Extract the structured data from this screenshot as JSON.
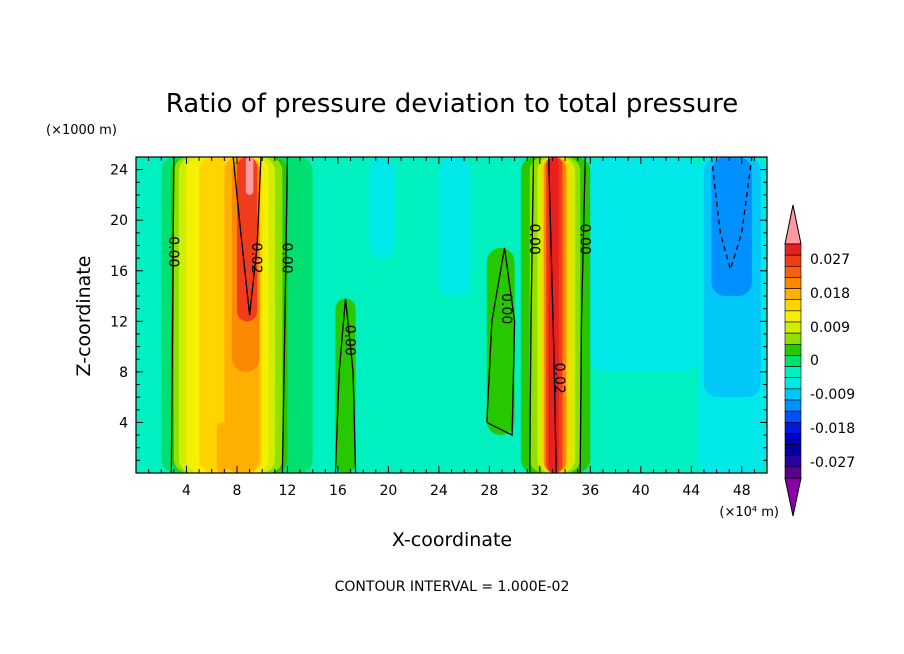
{
  "chart_data": {
    "type": "heatmap",
    "title": "Ratio of pressure deviation to total pressure",
    "xlabel": "X-coordinate",
    "ylabel": "Z-coordinate",
    "x_unit": "(×10⁴ m)",
    "y_unit": "(×1000 m)",
    "xlim": [
      0,
      50
    ],
    "ylim": [
      0,
      25
    ],
    "x_ticks": [
      "4",
      "8",
      "12",
      "16",
      "20",
      "24",
      "28",
      "32",
      "36",
      "40",
      "44",
      "48"
    ],
    "y_ticks": [
      "4",
      "8",
      "12",
      "16",
      "20",
      "24"
    ],
    "colorbar": {
      "labels": [
        "0.027",
        "0.018",
        "0.009",
        "0",
        "-0.009",
        "-0.018",
        "-0.027"
      ],
      "colors": [
        "#ff9aa0",
        "#e8211e",
        "#f03c1a",
        "#f56010",
        "#fb8a00",
        "#ffb000",
        "#ffd400",
        "#f5f000",
        "#d2ee00",
        "#90e000",
        "#28c800",
        "#00e070",
        "#00f0c0",
        "#00e8e8",
        "#00c8f8",
        "#0090ff",
        "#0050f8",
        "#0018e0",
        "#0000c0",
        "#0000a0",
        "#2a00a0",
        "#5a0090",
        "#8a00a8"
      ]
    },
    "contour_labels": [
      "0.00",
      "0.02",
      "0.00",
      "0.00",
      "0.00",
      "0.00",
      "0.02",
      "0.00"
    ],
    "features": [
      {
        "desc": "positive maximum",
        "x": 9,
        "z_range": [
          12,
          25
        ],
        "value": 0.027
      },
      {
        "desc": "positive maximum",
        "x": 33,
        "z_range": [
          0,
          25
        ],
        "value": 0.027
      },
      {
        "desc": "negative minimum",
        "x": 47,
        "z_range": [
          14,
          25
        ],
        "value": -0.012
      }
    ],
    "grid": false
  },
  "footer": "CONTOUR INTERVAL = 1.000E-02"
}
